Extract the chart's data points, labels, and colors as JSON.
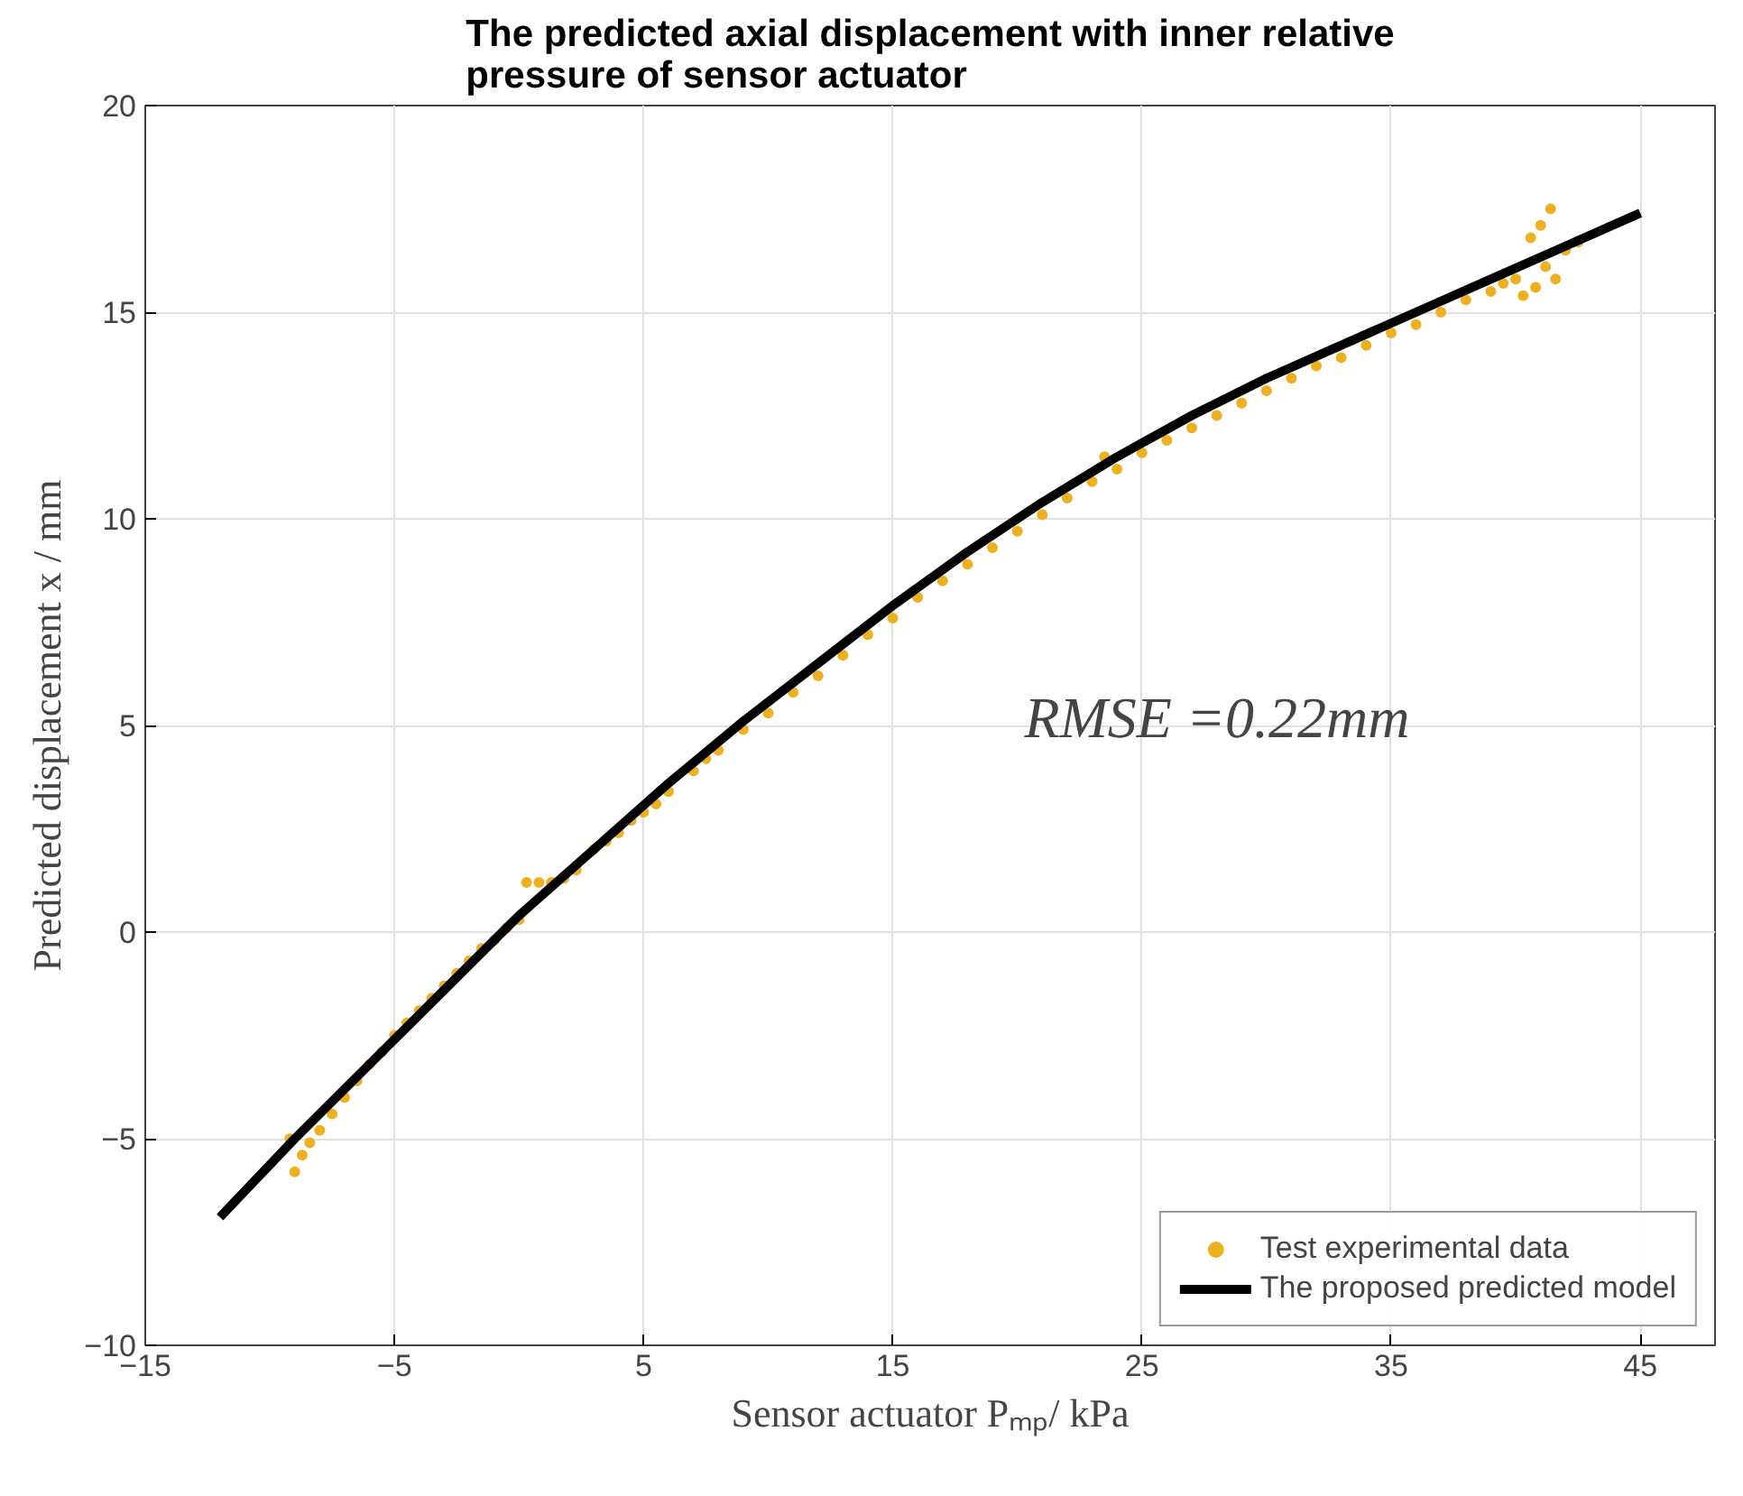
{
  "chart_data": {
    "type": "scatter",
    "title": "The predicted axial displacement with inner relative\npressure of sensor actuator",
    "xlabel": "Sensor actuator Pₘₚ/ kPa",
    "ylabel": "Predicted displacement x / mm",
    "xlim": [
      -15,
      48
    ],
    "ylim": [
      -10,
      20
    ],
    "xticks": [
      -15,
      -5,
      5,
      15,
      25,
      35,
      45
    ],
    "yticks": [
      -10,
      -5,
      0,
      5,
      10,
      15,
      20
    ],
    "grid": true,
    "legend": "bottom right",
    "annotations": [
      "RMSE =0.22mm"
    ],
    "series": [
      {
        "name": "Test experimental data",
        "marker": "circle",
        "color": "#edb120",
        "x": [
          -9.2,
          -9.0,
          -8.7,
          -8.4,
          -8.0,
          -7.5,
          -7.0,
          -6.5,
          -6.0,
          -5.5,
          -5.0,
          -4.5,
          -4.0,
          -3.5,
          -3.0,
          -2.5,
          -2.0,
          -1.5,
          -1.0,
          -0.5,
          0.0,
          0.3,
          0.8,
          1.3,
          1.8,
          2.3,
          3.0,
          3.5,
          4.0,
          4.5,
          5.0,
          5.5,
          6.0,
          7.0,
          7.5,
          8.0,
          9.0,
          10.0,
          11.0,
          12.0,
          13.0,
          14.0,
          15.0,
          16.0,
          17.0,
          18.0,
          19.0,
          20.0,
          21.0,
          22.0,
          23.0,
          23.5,
          24.0,
          25.0,
          26.0,
          27.0,
          28.0,
          29.0,
          30.0,
          31.0,
          32.0,
          33.0,
          34.0,
          35.0,
          36.0,
          37.0,
          38.0,
          39.0,
          39.5,
          40.0,
          40.3,
          40.6,
          40.8,
          41.0,
          41.2,
          41.4,
          41.6,
          42.0,
          42.5
        ],
        "values": [
          -5.0,
          -5.8,
          -5.4,
          -5.1,
          -4.8,
          -4.4,
          -4.0,
          -3.6,
          -3.2,
          -2.9,
          -2.5,
          -2.2,
          -1.9,
          -1.6,
          -1.3,
          -1.0,
          -0.7,
          -0.4,
          -0.2,
          0.1,
          0.3,
          1.2,
          1.2,
          1.2,
          1.3,
          1.5,
          2.0,
          2.2,
          2.4,
          2.7,
          2.9,
          3.1,
          3.4,
          3.9,
          4.2,
          4.4,
          4.9,
          5.3,
          5.8,
          6.2,
          6.7,
          7.2,
          7.6,
          8.1,
          8.5,
          8.9,
          9.3,
          9.7,
          10.1,
          10.5,
          10.9,
          11.5,
          11.2,
          11.6,
          11.9,
          12.2,
          12.5,
          12.8,
          13.1,
          13.4,
          13.7,
          13.9,
          14.2,
          14.5,
          14.7,
          15.0,
          15.3,
          15.5,
          15.7,
          15.8,
          15.4,
          16.8,
          15.6,
          17.1,
          16.1,
          17.5,
          15.8,
          16.5,
          16.7
        ]
      },
      {
        "name": "The proposed predicted model",
        "type": "line",
        "marker": "none",
        "color": "#000000",
        "x": [
          -12,
          -9,
          -6,
          -3,
          0,
          3,
          6,
          9,
          12,
          15,
          18,
          21,
          24,
          27,
          30,
          33,
          36,
          39,
          42,
          45
        ],
        "values": [
          -6.9,
          -5.0,
          -3.2,
          -1.4,
          0.4,
          2.0,
          3.6,
          5.1,
          6.5,
          7.9,
          9.2,
          10.4,
          11.5,
          12.5,
          13.4,
          14.2,
          15.0,
          15.8,
          16.6,
          17.4
        ]
      }
    ]
  }
}
